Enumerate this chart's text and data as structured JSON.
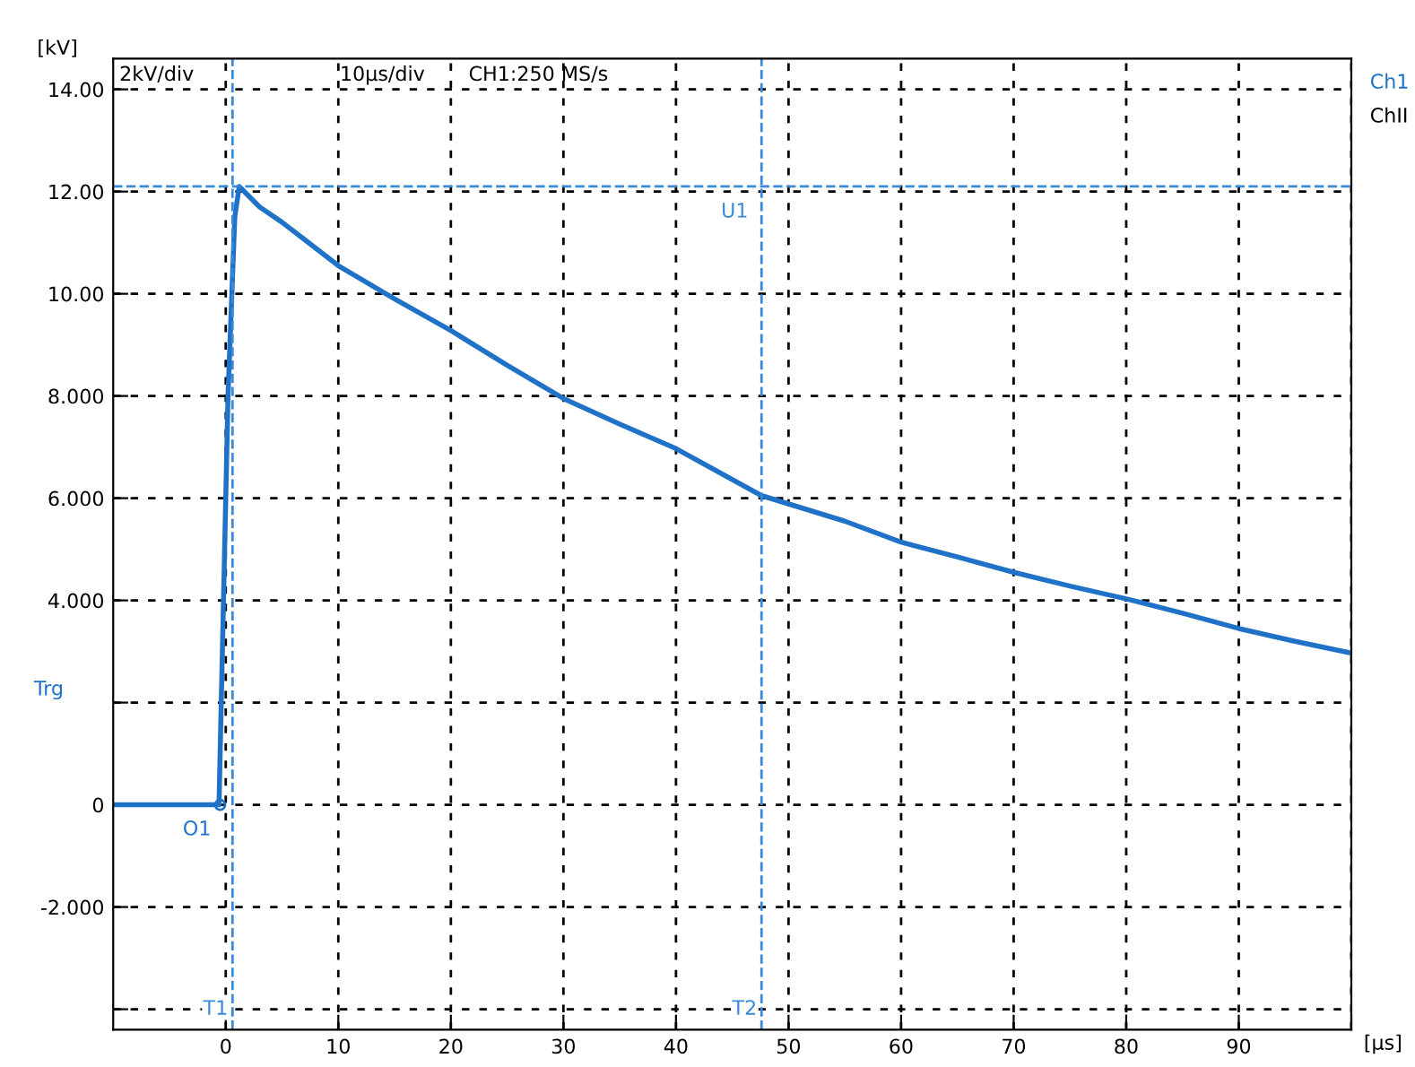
{
  "chart_data": {
    "type": "line",
    "xlabel": "[µs]",
    "ylabel": "[kV]",
    "x": [
      -10,
      -0.6,
      -0.4,
      0.2,
      0.8,
      1.2,
      3,
      5,
      10,
      15,
      20,
      25,
      30,
      35,
      40,
      47.6,
      55,
      60,
      65,
      70,
      75,
      80,
      85,
      90,
      95,
      100
    ],
    "series": [
      {
        "color": "#1f72c8",
        "values": [
          0,
          0,
          2,
          8,
          11.5,
          12.1,
          11.7,
          11.4,
          10.55,
          9.9,
          9.28,
          8.6,
          7.95,
          7.45,
          6.97,
          6.05,
          5.55,
          5.14,
          4.85,
          4.55,
          4.28,
          4.03,
          3.75,
          3.45,
          3.2,
          2.97
        ]
      }
    ],
    "xlim": [
      -10,
      100
    ],
    "ylim": [
      -4.4,
      14.6
    ],
    "xticks": [
      0,
      10,
      20,
      30,
      40,
      50,
      60,
      70,
      80,
      90,
      {
        "value": 100,
        "label": null
      }
    ],
    "yticks": [
      {
        "value": 14,
        "label": "14.00"
      },
      {
        "value": 12,
        "label": "12.00"
      },
      {
        "value": 10,
        "label": "10.00"
      },
      {
        "value": 8,
        "label": "8.000"
      },
      {
        "value": 6,
        "label": "6.000"
      },
      {
        "value": 4,
        "label": "4.000"
      },
      {
        "value": 2,
        "label": null
      },
      0,
      {
        "value": -2,
        "label": "-2.000"
      },
      {
        "value": -4,
        "label": null
      }
    ],
    "grid": true,
    "legend": false,
    "marker": "none",
    "line_style": "solid",
    "ref_lines": [
      {
        "axis": "y",
        "value": 12.1,
        "label": "U1",
        "color": "#3a8ad8",
        "line_style": "dashed"
      },
      {
        "axis": "x",
        "value": 0.6,
        "label": "T1",
        "color": "#3a8ad8",
        "line_style": "dashed"
      },
      {
        "axis": "x",
        "value": 47.6,
        "label": "T2",
        "color": "#3a8ad8",
        "line_style": "dashed"
      }
    ],
    "annotations": [
      "2kV/div",
      "10µs/div",
      "CH1:250 MS/s",
      "Ch1",
      "ChII",
      "Trg",
      {
        "text": "O1",
        "x": -0.5,
        "y": 0
      }
    ]
  }
}
